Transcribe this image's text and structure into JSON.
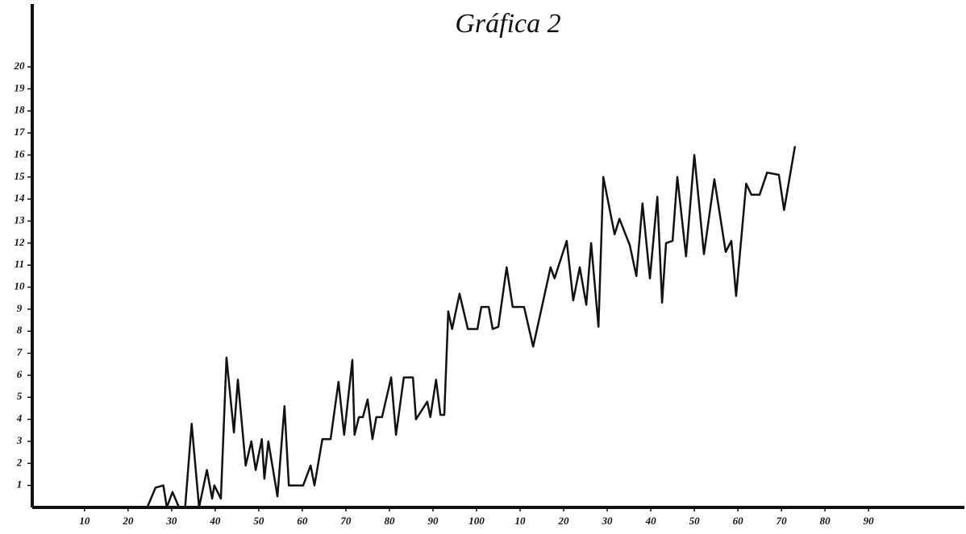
{
  "chart_data": {
    "type": "line",
    "title": "Gráfica 2",
    "xlim": [
      -2,
      212
    ],
    "ylim": [
      0,
      23
    ],
    "xticks": [
      10,
      20,
      30,
      40,
      50,
      60,
      70,
      80,
      90,
      100,
      {
        "value": 110,
        "label": "10"
      },
      {
        "value": 120,
        "label": "20"
      },
      {
        "value": 130,
        "label": "30"
      },
      {
        "value": 140,
        "label": "40"
      },
      {
        "value": 150,
        "label": "50"
      },
      {
        "value": 160,
        "label": "60"
      },
      {
        "value": 170,
        "label": "70"
      },
      {
        "value": 180,
        "label": "80"
      },
      {
        "value": 190,
        "label": "90"
      }
    ],
    "yticks": [
      1,
      2,
      3,
      4,
      5,
      6,
      7,
      8,
      9,
      10,
      11,
      12,
      13,
      14,
      15,
      16,
      17,
      18,
      19,
      20
    ],
    "grid": false,
    "series": [
      {
        "color": "#111111",
        "x": [
          24.4,
          26.3,
          28.1,
          28.9,
          30.2,
          31.7,
          33.1,
          34.6,
          36.3,
          38.1,
          39.3,
          39.8,
          41.3,
          42.6,
          44.3,
          45.2,
          47.0,
          48.3,
          49.3,
          50.7,
          51.3,
          52.2,
          54.3,
          55.9,
          56.9,
          60.2,
          61.9,
          62.8,
          64.6,
          66.5,
          68.3,
          69.6,
          71.5,
          72.0,
          73.0,
          73.9,
          75.0,
          76.1,
          77.0,
          78.3,
          80.4,
          81.5,
          83.3,
          85.4,
          86.1,
          88.7,
          89.4,
          90.7,
          91.7,
          92.6,
          93.5,
          94.4,
          96.1,
          98.0,
          100.2,
          101.1,
          102.8,
          103.7,
          105.0,
          106.9,
          108.3,
          110.9,
          113.0,
          117.0,
          117.9,
          120.7,
          122.2,
          123.7,
          125.2,
          126.3,
          128.0,
          129.1,
          131.7,
          132.8,
          135.2,
          136.7,
          138.1,
          139.8,
          141.5,
          142.6,
          143.5,
          145.0,
          146.1,
          148.1,
          150.0,
          152.2,
          154.6,
          157.2,
          158.5,
          159.6,
          161.9,
          163.1,
          165.0,
          166.7,
          169.4,
          170.6,
          173.1
        ],
        "values": [
          0,
          0.9,
          1.0,
          0,
          0.7,
          0,
          0,
          3.8,
          0,
          1.7,
          0.4,
          1.0,
          0.4,
          6.8,
          3.4,
          5.8,
          1.9,
          3.0,
          1.7,
          3.1,
          1.3,
          3.0,
          0.5,
          4.6,
          1.0,
          1.0,
          1.9,
          1.0,
          3.1,
          3.1,
          5.7,
          3.3,
          6.7,
          3.3,
          4.1,
          4.1,
          4.9,
          3.1,
          4.1,
          4.1,
          5.9,
          3.3,
          5.9,
          5.9,
          4.0,
          4.8,
          4.1,
          5.8,
          4.2,
          4.2,
          8.9,
          8.1,
          9.7,
          8.1,
          8.1,
          9.1,
          9.1,
          8.1,
          8.2,
          10.9,
          9.1,
          9.1,
          7.3,
          10.9,
          10.4,
          12.1,
          9.4,
          10.9,
          9.2,
          12.0,
          8.2,
          15.0,
          12.4,
          13.1,
          11.9,
          10.5,
          13.8,
          10.4,
          14.1,
          9.3,
          12.0,
          12.1,
          15.0,
          11.4,
          16.0,
          11.5,
          14.9,
          11.6,
          12.1,
          9.6,
          14.7,
          14.2,
          14.2,
          15.2,
          15.1,
          13.5,
          16.4
        ]
      }
    ]
  }
}
